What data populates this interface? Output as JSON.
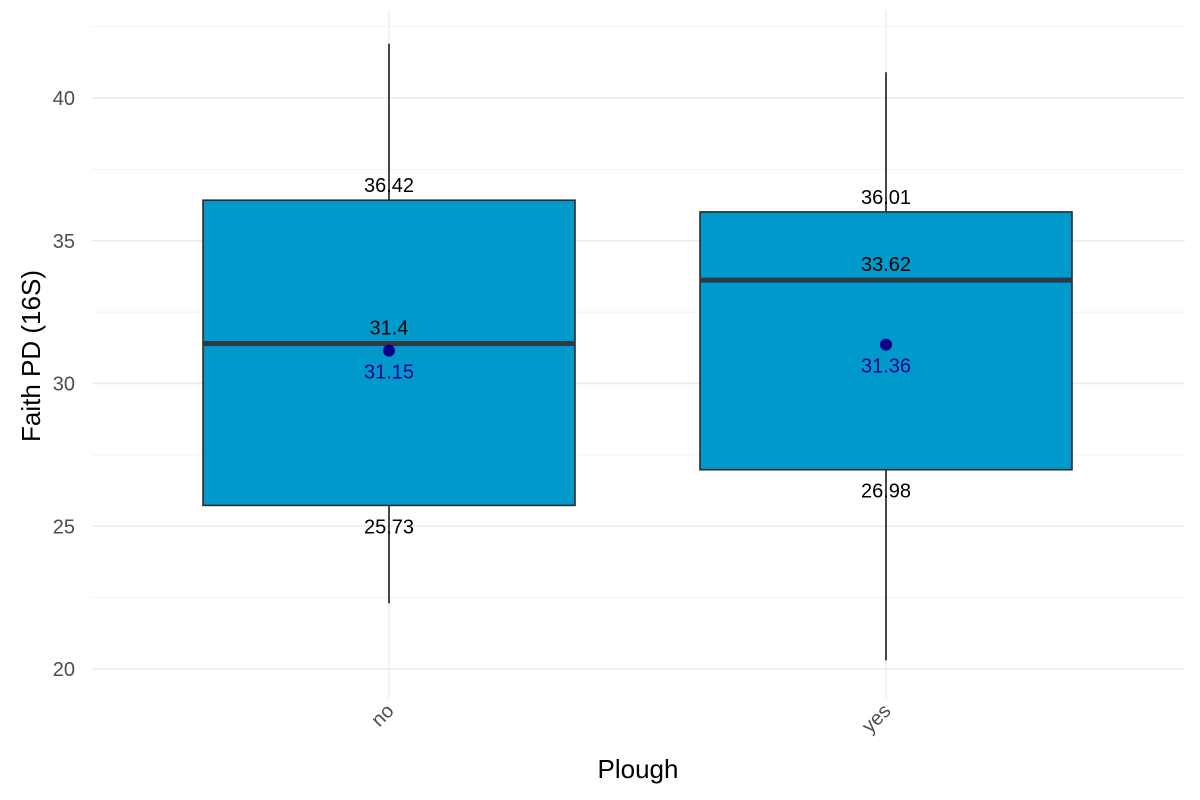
{
  "chart_data": {
    "type": "box",
    "title": "",
    "xlabel": "Plough",
    "ylabel": "Faith PD (16S)",
    "ylim": [
      19.0,
      42.5
    ],
    "y_ticks": [
      20,
      25,
      30,
      35,
      40
    ],
    "y_tick_labels": [
      "20",
      "25",
      "30",
      "35",
      "40"
    ],
    "grid": true,
    "legend": "none",
    "box_fill": "#0099CC",
    "mean_color": "#00008B",
    "categories": [
      "no",
      "yes"
    ],
    "boxes": [
      {
        "category": "no",
        "whisker_low": 22.3,
        "q1": 25.73,
        "median": 31.4,
        "q3": 36.42,
        "whisker_high": 41.9,
        "mean": 31.15,
        "labels": {
          "q1": "25.73",
          "median": "31.4",
          "q3": "36.42",
          "mean": "31.15"
        }
      },
      {
        "category": "yes",
        "whisker_low": 20.3,
        "q1": 26.98,
        "median": 33.62,
        "q3": 36.01,
        "whisker_high": 40.9,
        "mean": 31.36,
        "labels": {
          "q1": "26.98",
          "median": "33.62",
          "q3": "36.01",
          "mean": "31.36"
        }
      }
    ]
  }
}
